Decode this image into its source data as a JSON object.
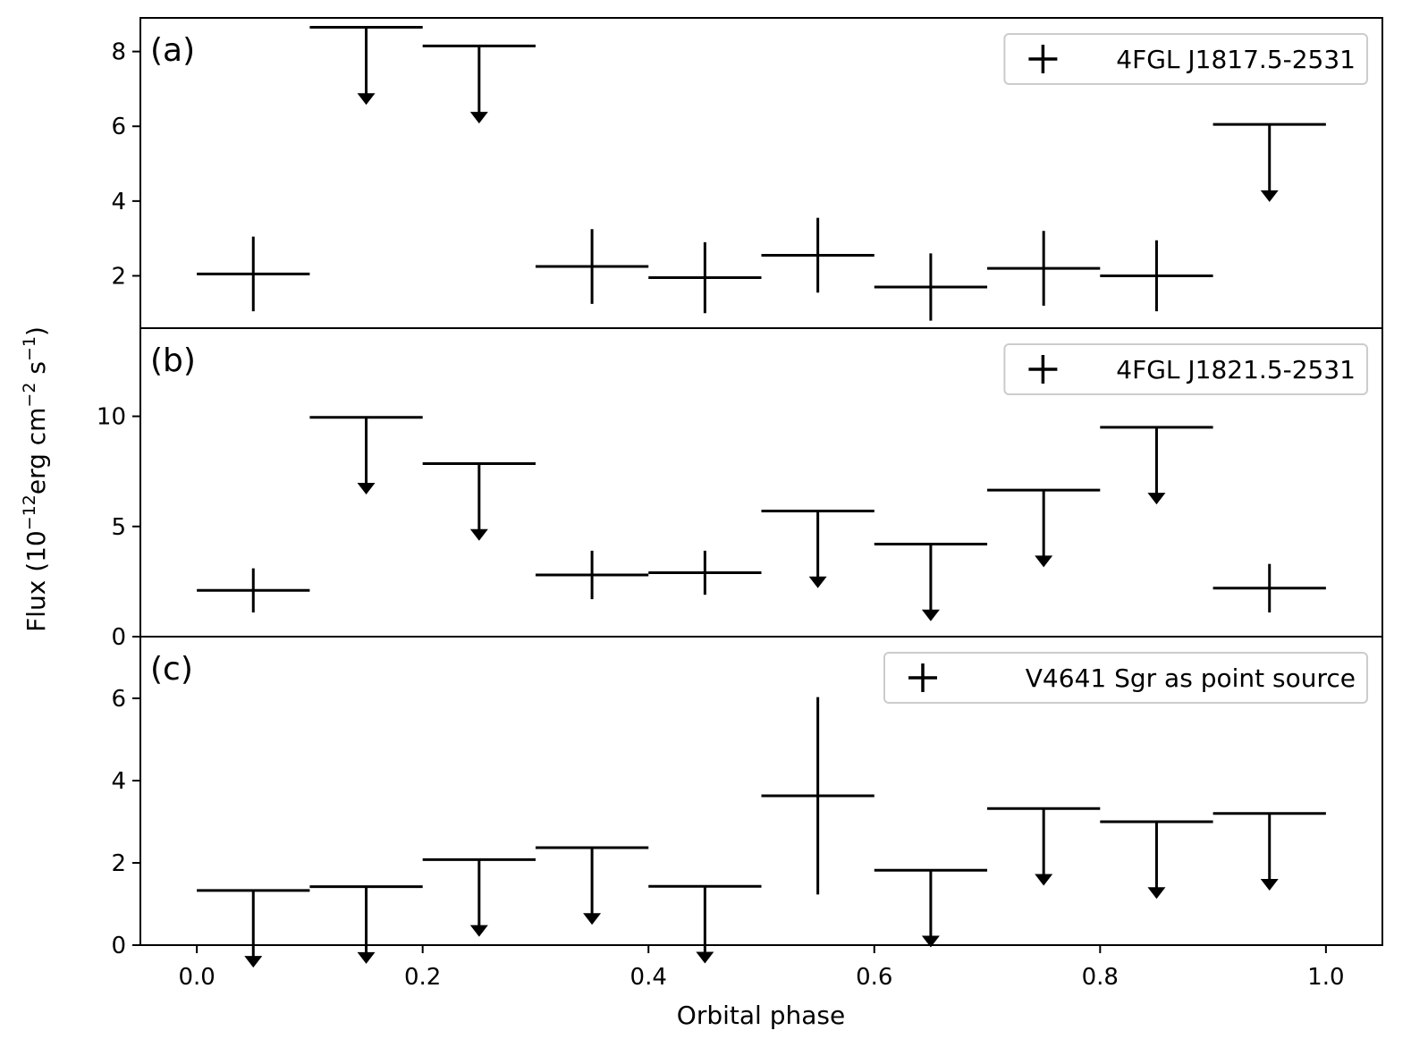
{
  "chart_data": {
    "type": "scatter",
    "xlabel": "Orbital phase",
    "ylabel_parts": [
      "Flux (10",
      "−12",
      "erg cm",
      "−2",
      " s",
      "−1",
      ")"
    ],
    "xlim": [
      -0.05,
      1.05
    ],
    "xticks": [
      0.0,
      0.2,
      0.4,
      0.6,
      0.8,
      1.0
    ],
    "xtick_labels": [
      "0.0",
      "0.2",
      "0.4",
      "0.6",
      "0.8",
      "1.0"
    ],
    "panels": [
      {
        "tag": "(a)",
        "legend": "4FGL J1817.5-2531",
        "ylim": [
          0.6,
          8.9
        ],
        "yticks": [
          2,
          4,
          6,
          8
        ],
        "ytick_labels": [
          "2",
          "4",
          "6",
          "8"
        ],
        "points": [
          {
            "x": 0.05,
            "y": 2.05,
            "err": 1.0
          },
          {
            "x": 0.15,
            "y": 8.65,
            "upper_limit": true
          },
          {
            "x": 0.25,
            "y": 8.15,
            "upper_limit": true
          },
          {
            "x": 0.35,
            "y": 2.25,
            "err": 1.0
          },
          {
            "x": 0.45,
            "y": 1.95,
            "err": 0.95
          },
          {
            "x": 0.55,
            "y": 2.55,
            "err": 1.0
          },
          {
            "x": 0.65,
            "y": 1.7,
            "err": 0.9
          },
          {
            "x": 0.75,
            "y": 2.2,
            "err": 1.0
          },
          {
            "x": 0.85,
            "y": 2.0,
            "err": 0.95
          },
          {
            "x": 0.95,
            "y": 6.05,
            "upper_limit": true
          }
        ]
      },
      {
        "tag": "(b)",
        "legend": "4FGL J1821.5-2531",
        "ylim": [
          0,
          14
        ],
        "yticks": [
          0,
          5,
          10
        ],
        "ytick_labels": [
          "0",
          "5",
          "10"
        ],
        "points": [
          {
            "x": 0.05,
            "y": 2.1,
            "err": 1.0
          },
          {
            "x": 0.15,
            "y": 9.95,
            "upper_limit": true
          },
          {
            "x": 0.25,
            "y": 7.85,
            "upper_limit": true
          },
          {
            "x": 0.35,
            "y": 2.8,
            "err": 1.1
          },
          {
            "x": 0.45,
            "y": 2.9,
            "err": 1.0
          },
          {
            "x": 0.55,
            "y": 5.7,
            "upper_limit": true
          },
          {
            "x": 0.65,
            "y": 4.2,
            "upper_limit": true
          },
          {
            "x": 0.75,
            "y": 6.65,
            "upper_limit": true
          },
          {
            "x": 0.85,
            "y": 9.5,
            "upper_limit": true
          },
          {
            "x": 0.95,
            "y": 2.2,
            "err": 1.1
          }
        ]
      },
      {
        "tag": "(c)",
        "legend": "V4641 Sgr as point source",
        "ylim": [
          0,
          7.5
        ],
        "yticks": [
          0,
          2,
          4,
          6
        ],
        "ytick_labels": [
          "0",
          "2",
          "4",
          "6"
        ],
        "points": [
          {
            "x": 0.05,
            "y": 1.33,
            "upper_limit": true
          },
          {
            "x": 0.15,
            "y": 1.42,
            "upper_limit": true
          },
          {
            "x": 0.25,
            "y": 2.08,
            "upper_limit": true
          },
          {
            "x": 0.35,
            "y": 2.37,
            "upper_limit": true
          },
          {
            "x": 0.45,
            "y": 1.43,
            "upper_limit": true
          },
          {
            "x": 0.55,
            "y": 3.63,
            "err": 2.4
          },
          {
            "x": 0.65,
            "y": 1.82,
            "upper_limit": true
          },
          {
            "x": 0.75,
            "y": 3.32,
            "upper_limit": true
          },
          {
            "x": 0.85,
            "y": 3.0,
            "upper_limit": true
          },
          {
            "x": 0.95,
            "y": 3.2,
            "upper_limit": true
          }
        ]
      }
    ]
  }
}
